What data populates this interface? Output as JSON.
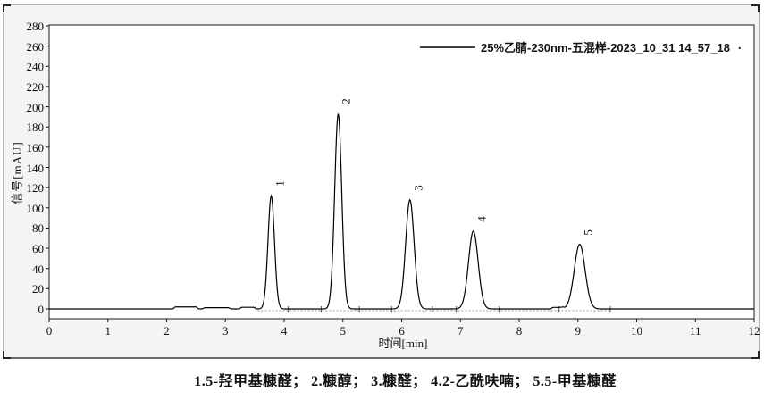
{
  "figure": {
    "legend": {
      "text": "25%乙腈-230nm-五混样-2023_10_31 14_57_18",
      "trailing_dot": "."
    },
    "caption": "1.5-羟甲基糠醛； 2.糠醇； 3.糠醛； 4.2-乙酰呋喃； 5.5-甲基糠醛"
  },
  "chart_data": {
    "type": "line",
    "title": "",
    "xlabel": "时间[min]",
    "ylabel": "信号[mAU]",
    "xlim": [
      0,
      12
    ],
    "ylim": [
      0,
      280
    ],
    "x_ticks": [
      0,
      1,
      2,
      3,
      4,
      5,
      6,
      7,
      8,
      9,
      10,
      11,
      12
    ],
    "y_ticks": [
      0,
      20,
      40,
      60,
      80,
      100,
      120,
      140,
      160,
      180,
      200,
      220,
      240,
      260,
      280
    ],
    "grid": false,
    "legend_position": "top-right",
    "series_name": "25%乙腈-230nm-五混样-2023_10_31 14_57_18",
    "line_color": "#000000",
    "baseline_mAU": 0,
    "peaks": [
      {
        "label": "1",
        "rt_min": 3.78,
        "height_mAU": 112,
        "sigma_min": 0.055,
        "compound": "5-羟甲基糠醛"
      },
      {
        "label": "2",
        "rt_min": 4.92,
        "height_mAU": 193,
        "sigma_min": 0.06,
        "compound": "糠醇"
      },
      {
        "label": "3",
        "rt_min": 6.14,
        "height_mAU": 108,
        "sigma_min": 0.072,
        "compound": "糠醛"
      },
      {
        "label": "4",
        "rt_min": 7.22,
        "height_mAU": 77,
        "sigma_min": 0.082,
        "compound": "2-乙酰呋喃"
      },
      {
        "label": "5",
        "rt_min": 9.03,
        "height_mAU": 64,
        "sigma_min": 0.092,
        "compound": "5-甲基糠醛"
      }
    ],
    "noise_bumps": [
      {
        "from_min": 2.15,
        "to_min": 2.5,
        "height_mAU": 2.0
      },
      {
        "from_min": 2.65,
        "to_min": 3.05,
        "height_mAU": 1.2
      },
      {
        "from_min": 3.28,
        "to_min": 3.48,
        "height_mAU": 1.6
      },
      {
        "from_min": 8.58,
        "to_min": 8.74,
        "height_mAU": 1.5
      }
    ],
    "integration_baseline": {
      "from_min": 3.55,
      "to_min": 9.55
    },
    "peak_markers_min": [
      3.52,
      4.07,
      4.63,
      5.28,
      5.83,
      6.52,
      6.93,
      7.66,
      8.68,
      9.55
    ]
  }
}
